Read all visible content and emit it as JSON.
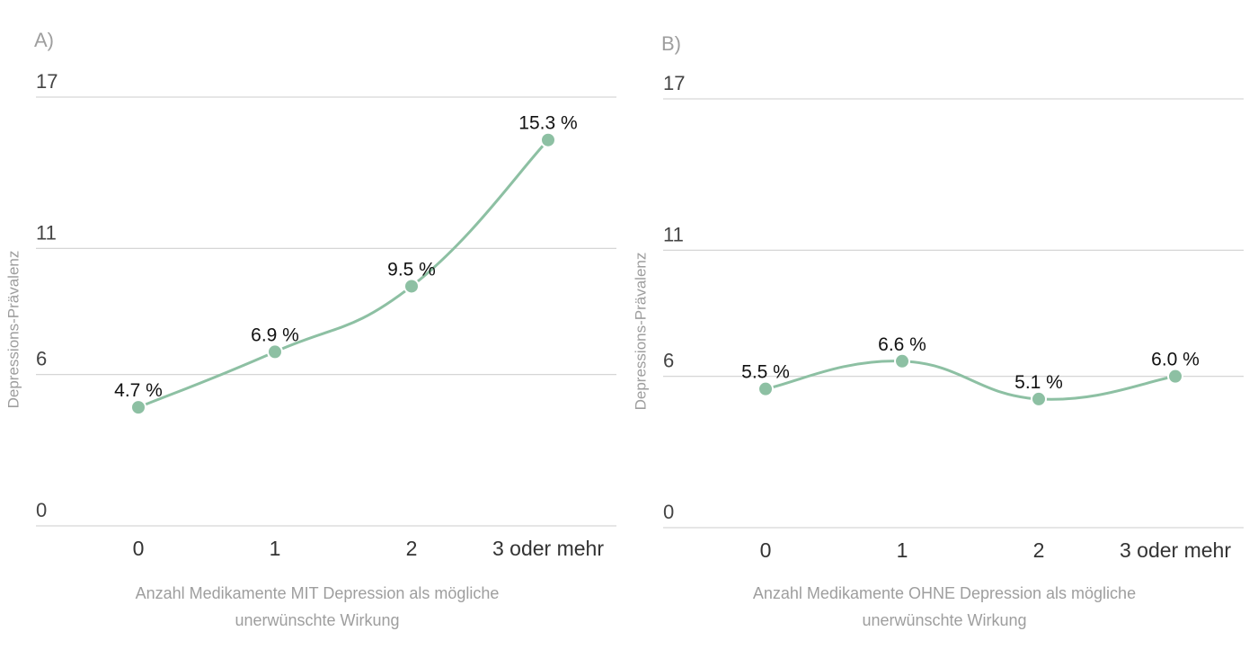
{
  "chart_data": [
    {
      "type": "line",
      "panel_label": "A)",
      "categories": [
        "0",
        "1",
        "2",
        "3 oder mehr"
      ],
      "values": [
        4.7,
        6.9,
        9.5,
        15.3
      ],
      "data_labels": [
        "4.7 %",
        "6.9 %",
        "9.5 %",
        "15.3 %"
      ],
      "ylabel": "Depressions-Prävalenz",
      "xlabel_lines": [
        "Anzahl Medikamente MIT Depression als mögliche",
        "unerwünschte Wirkung"
      ],
      "ylim": [
        0,
        17
      ],
      "yticks": [
        "0",
        "6",
        "11",
        "17"
      ],
      "grid": true,
      "smooth": true,
      "color": "#8dc0a3"
    },
    {
      "type": "line",
      "panel_label": "B)",
      "categories": [
        "0",
        "1",
        "2",
        "3 oder mehr"
      ],
      "values": [
        5.5,
        6.6,
        5.1,
        6.0
      ],
      "data_labels": [
        "5.5 %",
        "6.6 %",
        "5.1 %",
        "6.0 %"
      ],
      "ylabel": "Depressions-Prävalenz",
      "xlabel_lines": [
        "Anzahl Medikamente OHNE Depression als mögliche",
        "unerwünschte Wirkung"
      ],
      "ylim": [
        0,
        17
      ],
      "yticks": [
        "0",
        "6",
        "11",
        "17"
      ],
      "grid": true,
      "smooth": true,
      "color": "#8dc0a3"
    }
  ]
}
